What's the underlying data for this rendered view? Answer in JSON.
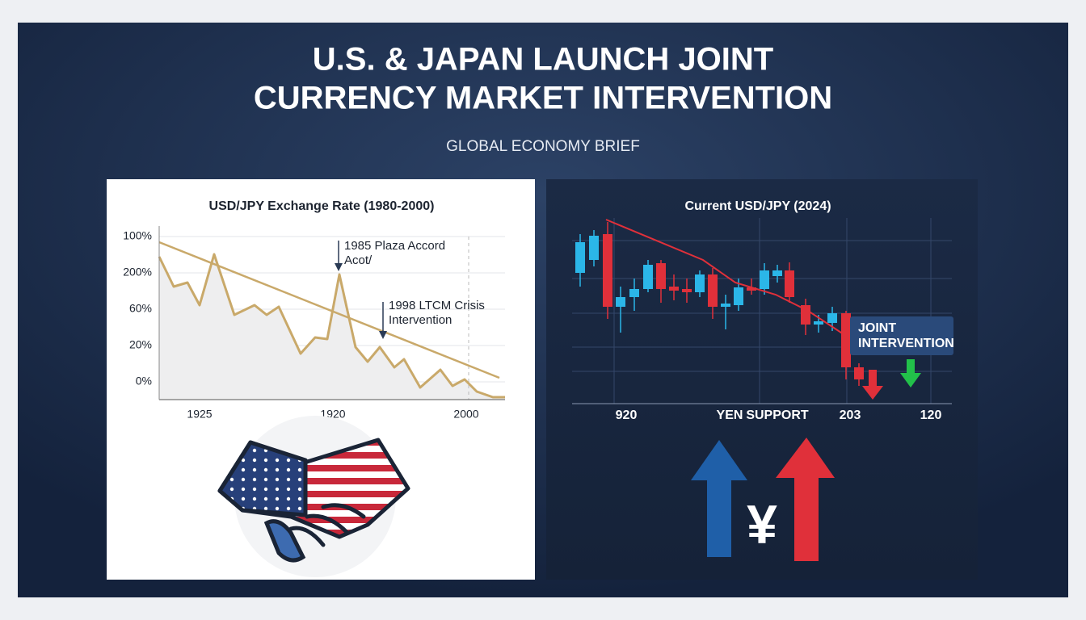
{
  "header": {
    "title": [
      "U.S. & JAPAN LAUNCH JOINT",
      "CURRENCY MARKET INTERVENTION"
    ],
    "subtitle": "GLOBAL ECONOMY BRIEF"
  },
  "left_panel": {
    "title": "USD/JPY Exchange Rate (1980-2000)",
    "y_labels": [
      "100%",
      "200%",
      "60%",
      "20%",
      "0%"
    ],
    "x_labels": [
      "1925",
      "1920",
      "2000"
    ],
    "annotations": [
      [
        "1985 Plaza Accord",
        "Acot/"
      ],
      [
        "1998 LTCM Crisis",
        "Intervention"
      ]
    ]
  },
  "right_panel": {
    "title": "Current USD/JPY (2024)",
    "x_labels": [
      "920",
      "YEN",
      "SUPPORT",
      "203",
      "120"
    ],
    "callout": [
      "JOINT",
      "INTERVENTION"
    ],
    "symbol": "¥"
  }
}
